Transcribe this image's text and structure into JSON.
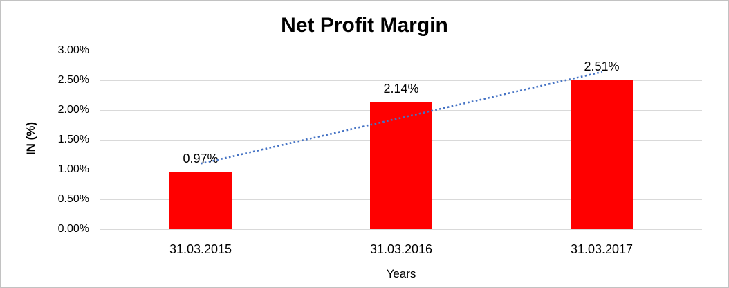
{
  "chart": {
    "title": "Net Profit Margin",
    "y_axis": {
      "title": "IN (%)",
      "tick_labels": [
        "3.00%",
        "2.50%",
        "2.00%",
        "1.50%",
        "1.00%",
        "0.50%",
        "0.00%"
      ]
    },
    "x_axis": {
      "title": "Years",
      "categories": [
        "31.03.2015",
        "31.03.2016",
        "31.03.2017"
      ]
    }
  },
  "chart_data": {
    "type": "bar",
    "title": "Net Profit Margin",
    "categories": [
      "31.03.2015",
      "31.03.2016",
      "31.03.2017"
    ],
    "values": [
      0.97,
      2.14,
      2.51
    ],
    "data_labels": [
      "0.97%",
      "2.14%",
      "2.51%"
    ],
    "xlabel": "Years",
    "ylabel": "IN (%)",
    "ylim": [
      0,
      3
    ],
    "ytick_step": 0.5,
    "grid": true,
    "legend": "none",
    "bar_color_hex": "#FF0000",
    "gridline_color_hex": "#D9D9D9",
    "frame_color_hex": "#C2C2C2",
    "trendline": {
      "type": "linear",
      "style": "dotted",
      "color_hex": "#4472C4",
      "endpoints_percent": [
        1.1,
        2.64
      ]
    }
  }
}
